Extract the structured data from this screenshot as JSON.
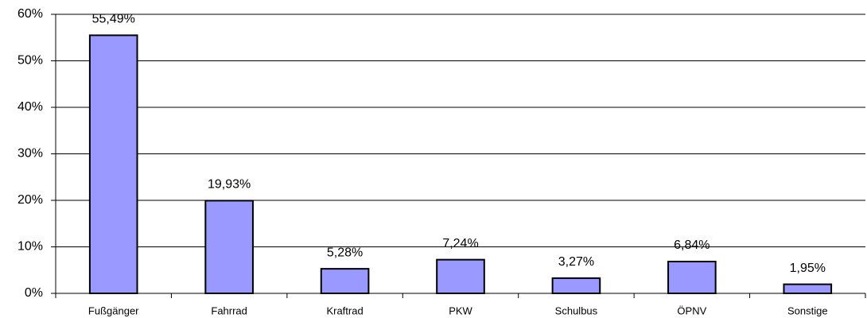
{
  "chart_data": {
    "type": "bar",
    "categories": [
      "Fußgänger",
      "Fahrrad",
      "Kraftrad",
      "PKW",
      "Schulbus",
      "ÖPNV",
      "Sonstige"
    ],
    "values": [
      55.49,
      19.93,
      5.28,
      7.24,
      3.27,
      6.84,
      1.95
    ],
    "value_labels": [
      "55,49%",
      "19,93%",
      "5,28%",
      "7,24%",
      "3,27%",
      "6,84%",
      "1,95%"
    ],
    "color": "#9999ff",
    "ylim": [
      0,
      60
    ],
    "yticks": [
      {
        "value": 0,
        "label": "0%"
      },
      {
        "value": 10,
        "label": "10%"
      },
      {
        "value": 20,
        "label": "20%"
      },
      {
        "value": 30,
        "label": "30%"
      },
      {
        "value": 40,
        "label": "40%"
      },
      {
        "value": 50,
        "label": "50%"
      },
      {
        "value": 60,
        "label": "60%"
      }
    ],
    "grid": true
  }
}
